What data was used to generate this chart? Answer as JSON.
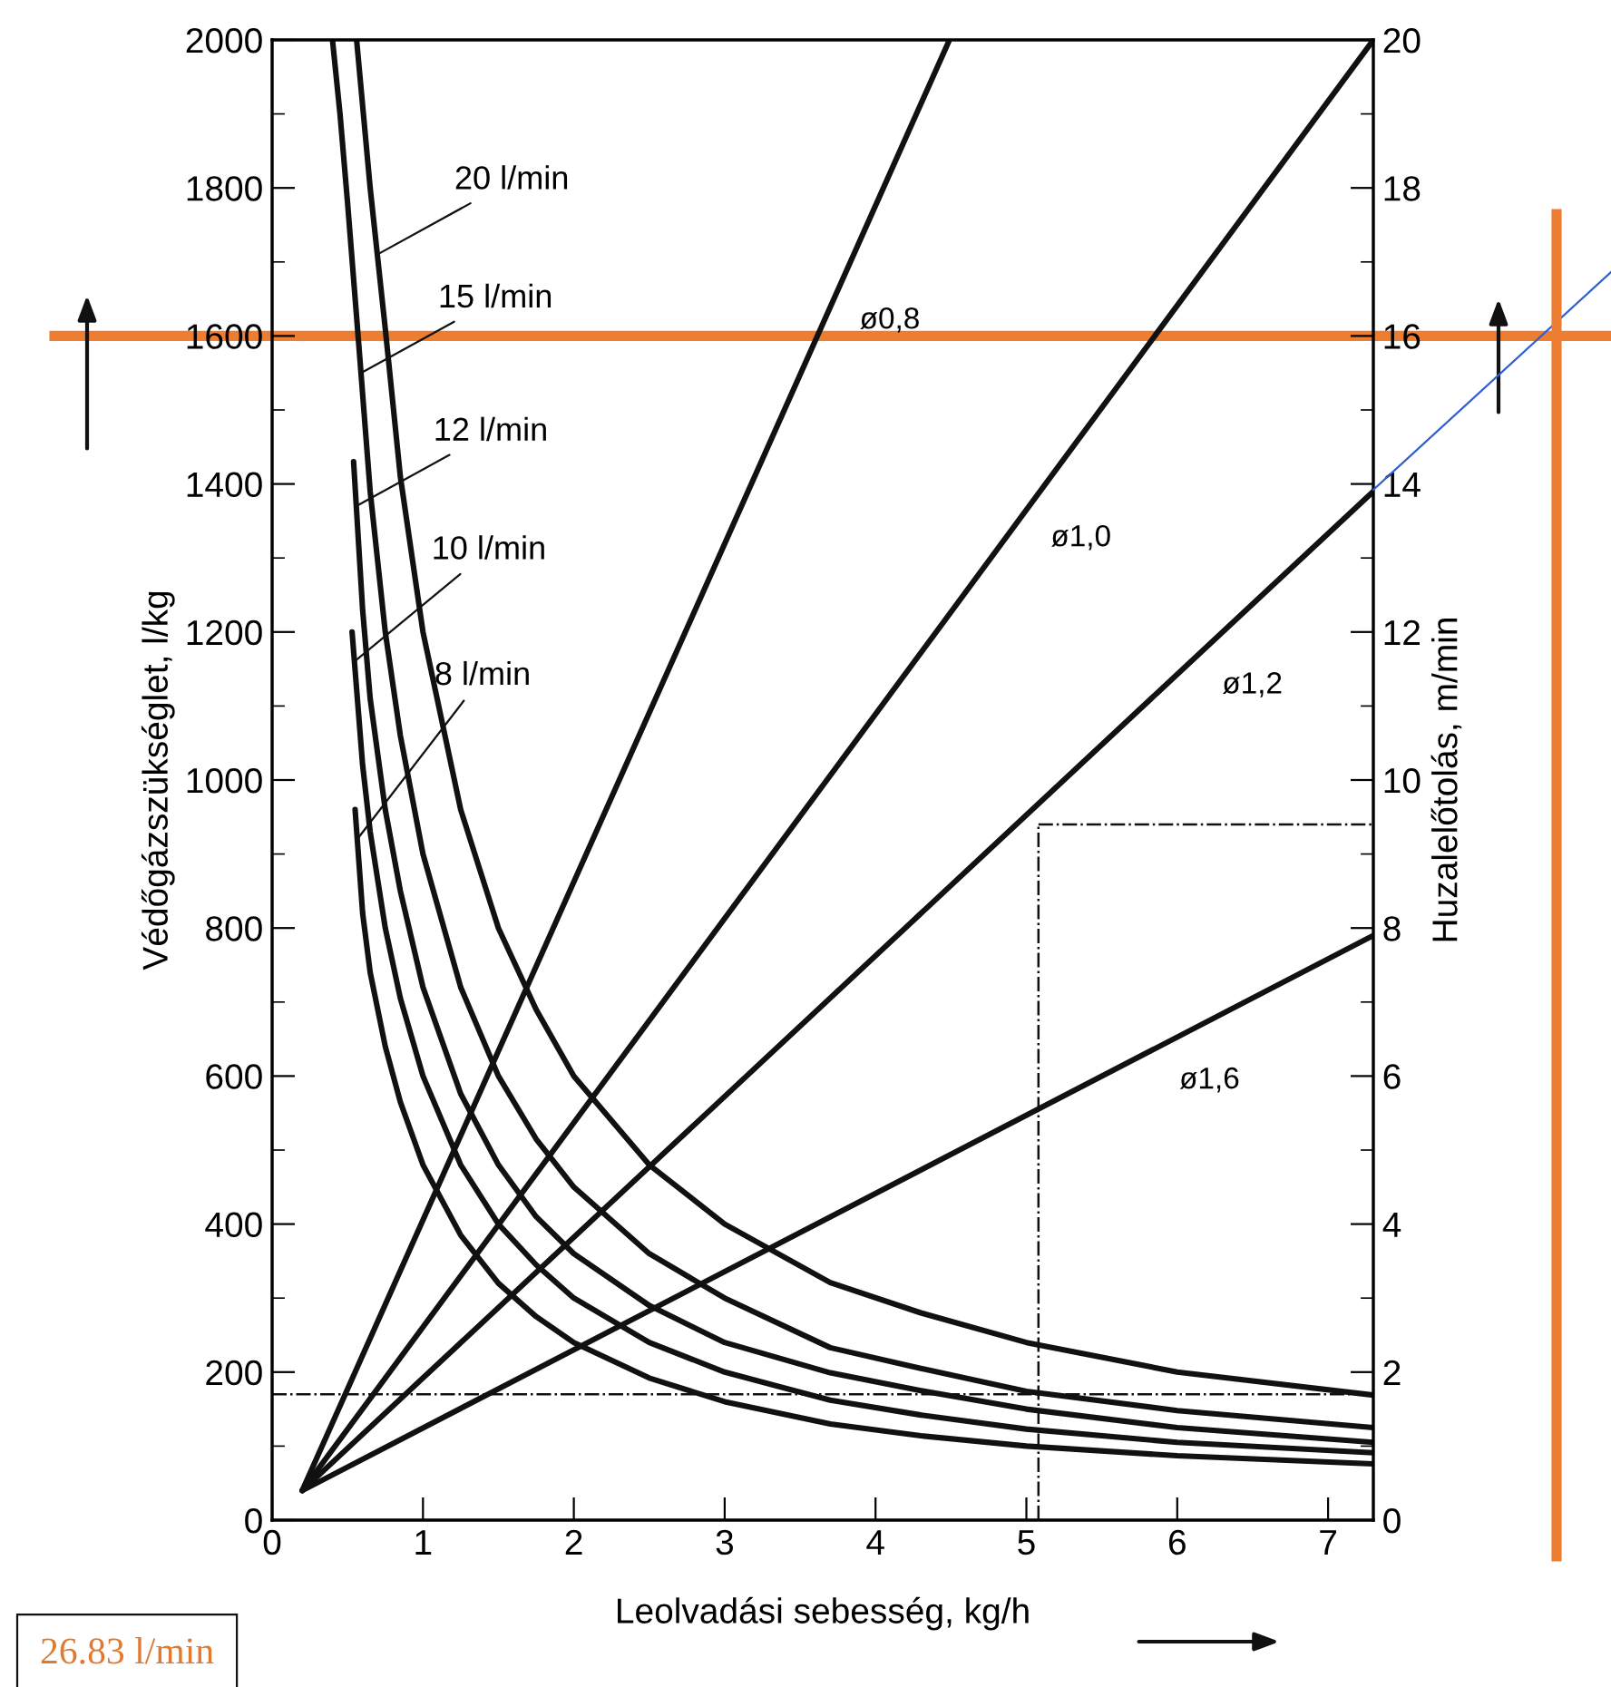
{
  "chart_data": {
    "type": "line",
    "xlabel": "Leolvadási sebesség, kg/h",
    "ylabel": "Védőgázszükséglet, l/kg",
    "y2label": "Huzalelőtolás, m/min",
    "xlim": [
      0,
      7.3
    ],
    "xticks": [
      0,
      1,
      2,
      3,
      4,
      5,
      6,
      7
    ],
    "ylim": [
      0,
      2000
    ],
    "yticks": [
      0,
      {
        "value": 100,
        "label": null
      },
      200,
      {
        "value": 300,
        "label": null
      },
      400,
      {
        "value": 500,
        "label": null
      },
      600,
      {
        "value": 700,
        "label": null
      },
      800,
      {
        "value": 900,
        "label": null
      },
      1000,
      {
        "value": 1100,
        "label": null
      },
      1200,
      {
        "value": 1300,
        "label": null
      },
      1400,
      {
        "value": 1500,
        "label": null
      },
      1600,
      {
        "value": 1700,
        "label": null
      },
      1800,
      {
        "value": 1900,
        "label": null
      },
      2000
    ],
    "y2lim": [
      0,
      20
    ],
    "y2ticks": [
      0,
      {
        "value": 1,
        "label": null
      },
      2,
      {
        "value": 3,
        "label": null
      },
      4,
      {
        "value": 5,
        "label": null
      },
      6,
      {
        "value": 7,
        "label": null
      },
      8,
      {
        "value": 9,
        "label": null
      },
      10,
      {
        "value": 11,
        "label": null
      },
      12,
      {
        "value": 13,
        "label": null
      },
      14,
      {
        "value": 15,
        "label": null
      },
      16,
      {
        "value": 17,
        "label": null
      },
      18,
      {
        "value": 19,
        "label": null
      },
      20
    ],
    "series": [
      {
        "name": "20 l/min",
        "color": "#111111",
        "x": [
          0.56,
          0.65,
          0.75,
          0.85,
          1,
          1.25,
          1.5,
          1.75,
          2,
          2.5,
          3,
          3.7,
          4.3,
          5,
          6,
          7.3
        ],
        "values": [
          2000,
          1800,
          1610,
          1410,
          1200,
          960,
          800,
          690,
          600,
          480,
          400,
          321,
          280,
          240,
          200,
          169
        ]
      },
      {
        "name": "15 l/min",
        "color": "#111111",
        "x": [
          0.4,
          0.45,
          0.5,
          0.57,
          0.65,
          0.75,
          0.85,
          1,
          1.25,
          1.5,
          1.75,
          2,
          2.5,
          3,
          3.7,
          4.3,
          5,
          6,
          7.3
        ],
        "values": [
          2000,
          1900,
          1780,
          1600,
          1390,
          1200,
          1060,
          900,
          720,
          600,
          515,
          450,
          360,
          300,
          233,
          205,
          174,
          148,
          125
        ]
      },
      {
        "name": "12 l/min",
        "color": "#111111",
        "x": [
          0.54,
          0.6,
          0.65,
          0.75,
          0.85,
          1,
          1.25,
          1.5,
          1.75,
          2,
          2.5,
          3,
          3.7,
          4.3,
          5,
          6,
          7.3
        ],
        "values": [
          1430,
          1230,
          1110,
          960,
          850,
          720,
          576,
          480,
          410,
          360,
          290,
          240,
          199,
          175,
          150,
          125,
          105
        ]
      },
      {
        "name": "10 l/min",
        "color": "#111111",
        "x": [
          0.53,
          0.6,
          0.65,
          0.75,
          0.85,
          1,
          1.25,
          1.5,
          1.75,
          2,
          2.5,
          3,
          3.7,
          4.3,
          5,
          6,
          7.3
        ],
        "values": [
          1200,
          1020,
          930,
          800,
          705,
          600,
          480,
          400,
          345,
          300,
          240,
          200,
          162,
          142,
          123,
          105,
          91
        ]
      },
      {
        "name": "8 l/min",
        "color": "#111111",
        "x": [
          0.55,
          0.6,
          0.65,
          0.75,
          0.85,
          1,
          1.25,
          1.5,
          1.75,
          2,
          2.5,
          3,
          3.7,
          4.3,
          5,
          6,
          7.3
        ],
        "values": [
          960,
          820,
          740,
          640,
          565,
          480,
          385,
          320,
          275,
          240,
          192,
          160,
          130,
          114,
          100,
          87,
          76
        ]
      },
      {
        "name": "ø0,8",
        "color": "#111111",
        "axis": "y2",
        "x": [
          0.2,
          4.49
        ],
        "values": [
          0.4,
          20
        ]
      },
      {
        "name": "ø1,0",
        "color": "#111111",
        "axis": "y2",
        "x": [
          0.2,
          7.3
        ],
        "values": [
          0.4,
          20
        ]
      },
      {
        "name": "ø1,2",
        "color": "#111111",
        "axis": "y2",
        "x": [
          0.2,
          7.3
        ],
        "values": [
          0.4,
          13.9
        ]
      },
      {
        "name": "ø1,6",
        "color": "#111111",
        "axis": "y2",
        "x": [
          0.2,
          7.3
        ],
        "values": [
          0.4,
          7.9
        ]
      },
      {
        "color": "#111111",
        "line_style": "dashed",
        "x": [
          0,
          7.3
        ],
        "values": [
          170,
          170
        ]
      },
      {
        "color": "#111111",
        "line_style": "dashed",
        "axis": "y2",
        "x": [
          5.08,
          5.08
        ],
        "values": [
          0,
          9.4
        ]
      },
      {
        "color": "#111111",
        "line_style": "dashed",
        "axis": "y2",
        "x": [
          5.08,
          7.3
        ],
        "values": [
          9.4,
          9.4
        ]
      }
    ],
    "ref_lines": [
      {
        "axis": "y",
        "value": 1600,
        "color": "#ed7d31"
      }
    ],
    "annotations": [
      "26.83 l/min"
    ]
  }
}
